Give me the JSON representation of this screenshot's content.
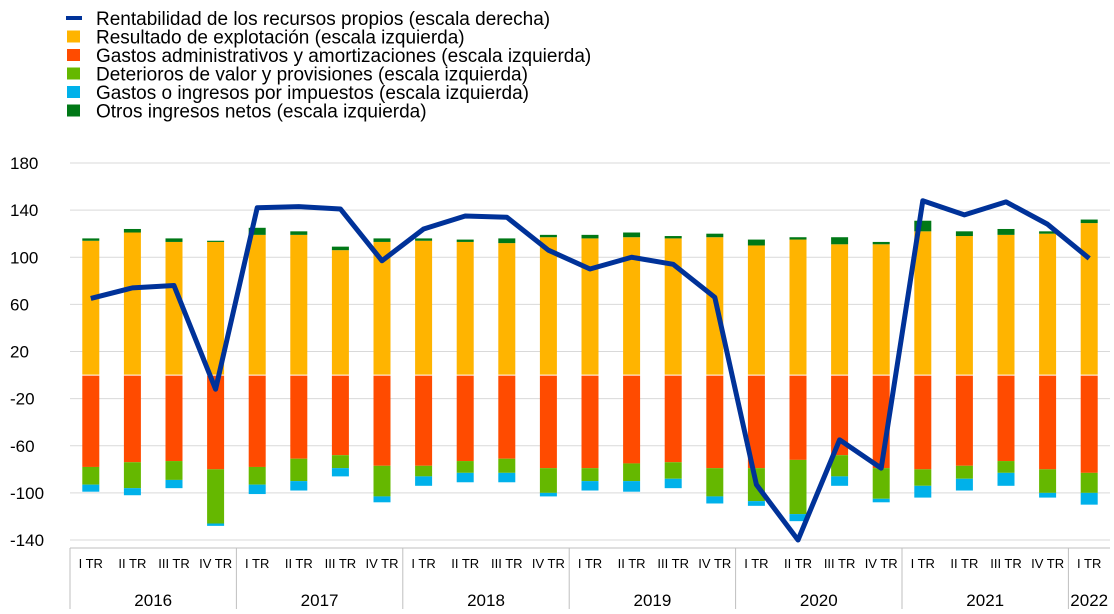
{
  "chart_data": {
    "type": "bar",
    "stacked": true,
    "categories": [
      "I TR",
      "II TR",
      "III TR",
      "IV TR",
      "I TR",
      "II TR",
      "III TR",
      "IV TR",
      "I TR",
      "II TR",
      "III TR",
      "IV TR",
      "I TR",
      "II TR",
      "III TR",
      "IV TR",
      "I TR",
      "II TR",
      "III TR",
      "IV TR",
      "I TR",
      "II TR",
      "III TR",
      "IV TR",
      "I TR"
    ],
    "year_labels": [
      "2016",
      "2017",
      "2018",
      "2019",
      "2020",
      "2021",
      "2022"
    ],
    "ylim": [
      -140,
      180
    ],
    "yticks": [
      180,
      140,
      100,
      60,
      20,
      -20,
      -60,
      -100,
      -140
    ],
    "grid": true,
    "series": [
      {
        "name": "Rentabilidad de los recursos propios (escala derecha)",
        "type": "line",
        "color": "#003299",
        "values": [
          65,
          74,
          76,
          -12,
          142,
          143,
          141,
          97,
          124,
          135,
          134,
          106,
          90,
          100,
          94,
          66,
          -93,
          -140,
          -55,
          -79,
          148,
          136,
          147,
          128,
          99
        ]
      },
      {
        "name": "Resultado de explotación (escala izquierda)",
        "color": "#ffb400",
        "values": [
          114,
          121,
          113,
          113,
          119,
          119,
          106,
          113,
          114,
          113,
          112,
          117,
          116,
          117,
          116,
          117,
          110,
          115,
          111,
          111,
          122,
          118,
          119,
          120,
          129
        ]
      },
      {
        "name": "Gastos administrativos y amortizaciones (escala izquierda)",
        "color": "#ff4b00",
        "values": [
          -78,
          -74,
          -73,
          -80,
          -78,
          -71,
          -68,
          -77,
          -77,
          -73,
          -71,
          -79,
          -79,
          -75,
          -74,
          -79,
          -79,
          -72,
          -68,
          -79,
          -80,
          -77,
          -73,
          -80,
          -83
        ]
      },
      {
        "name": "Deterioros de valor y provisiones (escala izquierda)",
        "color": "#65b800",
        "values": [
          -15,
          -22,
          -16,
          -46,
          -15,
          -19,
          -11,
          -26,
          -9,
          -10,
          -12,
          -21,
          -11,
          -15,
          -14,
          -24,
          -28,
          -46,
          -18,
          -26,
          -14,
          -11,
          -10,
          -20,
          -17
        ]
      },
      {
        "name": "Gastos o ingresos por impuestos (escala izquierda)",
        "color": "#00b1ea",
        "values": [
          -6,
          -6,
          -7,
          -2,
          -8,
          -8,
          -7,
          -5,
          -8,
          -8,
          -8,
          -3,
          -8,
          -9,
          -8,
          -6,
          -4,
          -6,
          -8,
          -3,
          -10,
          -10,
          -11,
          -4,
          -10
        ]
      },
      {
        "name": "Otros ingresos netos (escala izquierda)",
        "color": "#007816",
        "values": [
          2,
          3,
          3,
          1,
          6,
          3,
          3,
          3,
          2,
          2,
          4,
          2,
          3,
          4,
          2,
          3,
          5,
          2,
          6,
          2,
          9,
          4,
          5,
          2,
          3
        ]
      }
    ]
  }
}
